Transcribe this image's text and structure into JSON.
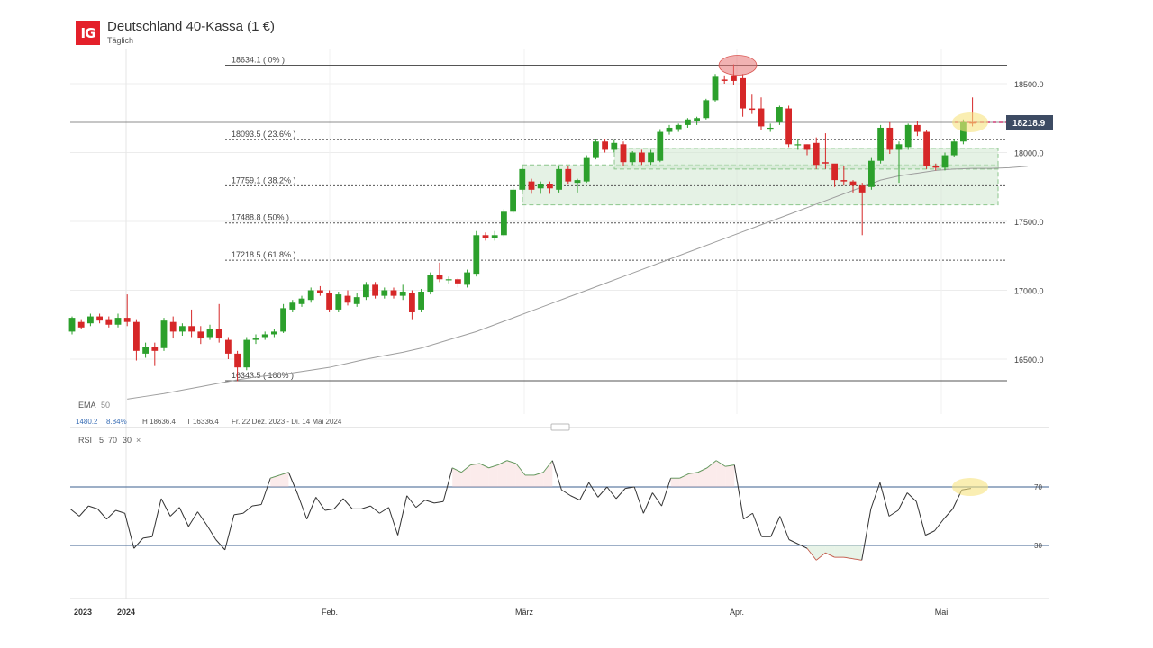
{
  "header": {
    "logo_text": "IG",
    "title": "Deutschland 40-Kassa (1 €)",
    "subtitle": "Täglich"
  },
  "colors": {
    "up": "#2ca02c",
    "down": "#d62728",
    "ema": "#9e9e9e",
    "fib_line": "#555555",
    "zone_fill": "#cfe8cf",
    "price_label_bg": "#3d4b63",
    "rsi_line": "#333333",
    "rsi_over": "#4a8f4a",
    "rsi_under": "#c0392b",
    "rsi_level": "#3b5f8f"
  },
  "price_axis": {
    "ticks": [
      "18500.0",
      "18000.0",
      "17500.0",
      "17000.0",
      "16500.0"
    ],
    "current_label": "18218.9",
    "current_value": 18218.9
  },
  "fib_levels": [
    {
      "value": 18634.1,
      "label": "18634.1 ( 0% )",
      "style": "solid"
    },
    {
      "value": 18093.5,
      "label": "18093.5 ( 23.6% )",
      "style": "dashed"
    },
    {
      "value": 17759.1,
      "label": "17759.1 ( 38.2% )",
      "style": "dashed"
    },
    {
      "value": 17488.8,
      "label": "17488.8 ( 50% )",
      "style": "dashed"
    },
    {
      "value": 17218.5,
      "label": "17218.5 ( 61.8% )",
      "style": "dashed"
    },
    {
      "value": 16343.5,
      "label": "16343.5 ( 100% )",
      "style": "solid"
    }
  ],
  "ema_label": {
    "name": "EMA",
    "period": "50"
  },
  "info_line": {
    "change": "1480.2",
    "change_pct": "8.84%",
    "high": "H 18636.4",
    "low": "T 16336.4",
    "range": "Fr. 22 Dez. 2023 - Di. 14 Mai 2024"
  },
  "rsi_label": {
    "name": "RSI",
    "period": "5",
    "upper": "70",
    "lower": "30"
  },
  "rsi_axis": {
    "upper": "70",
    "lower": "30"
  },
  "time_axis": [
    "2023",
    "2024",
    "Feb.",
    "März",
    "Apr.",
    "Mai"
  ],
  "chart_data": {
    "type": "candlestick",
    "title": "Deutschland 40-Kassa (1 €)",
    "subtitle": "Täglich",
    "ylim": [
      16200,
      18800
    ],
    "candles": [
      [
        16700,
        16800,
        16680,
        16810
      ],
      [
        16770,
        16730,
        16720,
        16790
      ],
      [
        16760,
        16810,
        16740,
        16830
      ],
      [
        16810,
        16780,
        16760,
        16830
      ],
      [
        16790,
        16750,
        16730,
        16810
      ],
      [
        16750,
        16800,
        16730,
        16830
      ],
      [
        16800,
        16770,
        16740,
        16970
      ],
      [
        16770,
        16560,
        16490,
        16790
      ],
      [
        16540,
        16590,
        16510,
        16620
      ],
      [
        16590,
        16560,
        16450,
        16620
      ],
      [
        16580,
        16780,
        16560,
        16800
      ],
      [
        16770,
        16700,
        16650,
        16810
      ],
      [
        16700,
        16740,
        16670,
        16760
      ],
      [
        16740,
        16700,
        16660,
        16860
      ],
      [
        16700,
        16650,
        16610,
        16740
      ],
      [
        16660,
        16720,
        16640,
        16750
      ],
      [
        16720,
        16650,
        16620,
        16900
      ],
      [
        16640,
        16540,
        16500,
        16660
      ],
      [
        16540,
        16440,
        16340,
        16560
      ],
      [
        16440,
        16640,
        16420,
        16660
      ],
      [
        16640,
        16650,
        16610,
        16680
      ],
      [
        16660,
        16680,
        16640,
        16700
      ],
      [
        16680,
        16700,
        16660,
        16720
      ],
      [
        16700,
        16870,
        16690,
        16900
      ],
      [
        16860,
        16910,
        16840,
        16930
      ],
      [
        16900,
        16940,
        16880,
        16960
      ],
      [
        16930,
        17000,
        16910,
        17020
      ],
      [
        17000,
        16980,
        16960,
        17030
      ],
      [
        16980,
        16860,
        16840,
        17000
      ],
      [
        16860,
        16970,
        16840,
        16990
      ],
      [
        16960,
        16910,
        16890,
        17000
      ],
      [
        16900,
        16950,
        16880,
        16980
      ],
      [
        16950,
        17040,
        16930,
        17060
      ],
      [
        17040,
        16960,
        16940,
        17060
      ],
      [
        16960,
        17000,
        16940,
        17020
      ],
      [
        17000,
        16960,
        16940,
        17020
      ],
      [
        16960,
        16990,
        16930,
        17040
      ],
      [
        16980,
        16840,
        16790,
        17000
      ],
      [
        16860,
        16990,
        16840,
        17010
      ],
      [
        16990,
        17110,
        16970,
        17130
      ],
      [
        17110,
        17080,
        17060,
        17200
      ],
      [
        17080,
        17080,
        17050,
        17100
      ],
      [
        17080,
        17050,
        17020,
        17090
      ],
      [
        17040,
        17130,
        17020,
        17150
      ],
      [
        17120,
        17400,
        17100,
        17430
      ],
      [
        17400,
        17380,
        17360,
        17420
      ],
      [
        17380,
        17400,
        17360,
        17430
      ],
      [
        17400,
        17570,
        17390,
        17590
      ],
      [
        17570,
        17730,
        17560,
        17750
      ],
      [
        17730,
        17880,
        17720,
        17900
      ],
      [
        17790,
        17730,
        17700,
        17810
      ],
      [
        17740,
        17770,
        17700,
        17790
      ],
      [
        17770,
        17740,
        17700,
        17790
      ],
      [
        17730,
        17880,
        17710,
        17900
      ],
      [
        17880,
        17790,
        17770,
        17900
      ],
      [
        17780,
        17800,
        17710,
        17810
      ],
      [
        17790,
        17960,
        17780,
        17980
      ],
      [
        17960,
        18080,
        17950,
        18100
      ],
      [
        18080,
        18020,
        18000,
        18100
      ],
      [
        18020,
        18070,
        18000,
        18090
      ],
      [
        18060,
        17930,
        17900,
        18080
      ],
      [
        17930,
        18000,
        17910,
        18010
      ],
      [
        18000,
        17930,
        17910,
        18020
      ],
      [
        17930,
        18000,
        17910,
        18020
      ],
      [
        17940,
        18150,
        17930,
        18170
      ],
      [
        18150,
        18180,
        18130,
        18200
      ],
      [
        18170,
        18200,
        18150,
        18210
      ],
      [
        18200,
        18240,
        18180,
        18250
      ],
      [
        18230,
        18250,
        18200,
        18260
      ],
      [
        18250,
        18380,
        18240,
        18390
      ],
      [
        18380,
        18550,
        18370,
        18570
      ],
      [
        18530,
        18520,
        18500,
        18560
      ],
      [
        18560,
        18520,
        18490,
        18640
      ],
      [
        18540,
        18320,
        18260,
        18570
      ],
      [
        18320,
        18310,
        18280,
        18420
      ],
      [
        18320,
        18190,
        18160,
        18400
      ],
      [
        18180,
        18180,
        18150,
        18210
      ],
      [
        18220,
        18330,
        18200,
        18340
      ],
      [
        18320,
        18060,
        18040,
        18340
      ],
      [
        18060,
        18060,
        18020,
        18100
      ],
      [
        18060,
        18020,
        17980,
        18060
      ],
      [
        18070,
        17910,
        17880,
        18110
      ],
      [
        17930,
        17920,
        17880,
        18140
      ],
      [
        17920,
        17800,
        17750,
        17900
      ],
      [
        17800,
        17790,
        17760,
        17900
      ],
      [
        17790,
        17760,
        17710,
        17800
      ],
      [
        17760,
        17710,
        17400,
        17780
      ],
      [
        17750,
        17940,
        17730,
        17960
      ],
      [
        17940,
        18180,
        17920,
        18200
      ],
      [
        18180,
        18020,
        17990,
        18220
      ],
      [
        18020,
        18060,
        17780,
        18080
      ],
      [
        18040,
        18200,
        18020,
        18210
      ],
      [
        18200,
        18150,
        18120,
        18230
      ],
      [
        18150,
        17900,
        17880,
        18160
      ],
      [
        17900,
        17890,
        17870,
        17920
      ],
      [
        17890,
        17980,
        17870,
        18000
      ],
      [
        17980,
        18080,
        17970,
        18100
      ],
      [
        18080,
        18220,
        18060,
        18240
      ],
      [
        18220,
        18210,
        18190,
        18400
      ]
    ],
    "ema50": [
      16210,
      16230,
      16250,
      16275,
      16300,
      16325,
      16350,
      16370,
      16385,
      16400,
      16420,
      16440,
      16470,
      16500,
      16525,
      16550,
      16580,
      16620,
      16660,
      16700,
      16750,
      16800,
      16850,
      16900,
      16950,
      17000,
      17050,
      17100,
      17150,
      17200,
      17250,
      17300,
      17350,
      17400,
      17450,
      17500,
      17550,
      17600,
      17650,
      17700,
      17750,
      17800,
      17830,
      17850,
      17870,
      17880,
      17885,
      17885,
      17890,
      17900
    ],
    "rsi": [
      55,
      50,
      57,
      55,
      48,
      54,
      52,
      28,
      35,
      36,
      62,
      50,
      56,
      43,
      53,
      44,
      34,
      27,
      51,
      52,
      57,
      58,
      76,
      78,
      80,
      65,
      48,
      63,
      54,
      55,
      62,
      55,
      55,
      57,
      52,
      56,
      37,
      64,
      56,
      61,
      59,
      60,
      83,
      80,
      85,
      86,
      83,
      85,
      88,
      86,
      78,
      78,
      80,
      88,
      68,
      64,
      61,
      73,
      63,
      70,
      62,
      69,
      70,
      52,
      66,
      57,
      76,
      76,
      79,
      80,
      83,
      88,
      84,
      85,
      48,
      52,
      36,
      36,
      50,
      34,
      31,
      28,
      20,
      25,
      22,
      22,
      21,
      20,
      55,
      73,
      50,
      54,
      66,
      60,
      37,
      40,
      48,
      55,
      68,
      69
    ],
    "rsi_levels": [
      70,
      30
    ],
    "series": [
      {
        "name": "EMA 50"
      },
      {
        "name": "RSI 5"
      }
    ],
    "annotations": [
      {
        "type": "ellipse",
        "label": "high",
        "value": 18634.1,
        "color": "#e8a0a0"
      },
      {
        "type": "ellipse",
        "label": "current",
        "value": 18218.9,
        "color": "#f5e08a"
      },
      {
        "type": "ellipse",
        "label": "rsi",
        "value": 70,
        "color": "#f5e08a"
      }
    ],
    "zones": [
      {
        "from": 17620,
        "to": 17910
      },
      {
        "from": 17880,
        "to": 18030
      }
    ]
  }
}
